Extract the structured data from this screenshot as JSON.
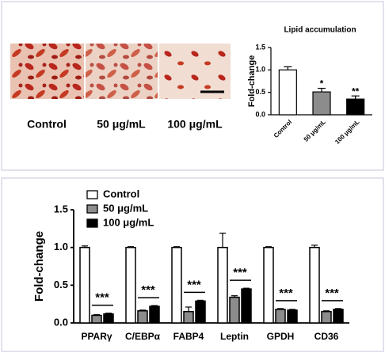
{
  "images": {
    "labels": [
      "Control",
      "50 μg/mL",
      "100 μg/mL"
    ]
  },
  "chart_data": [
    {
      "type": "bar",
      "title": "Lipid accumulation",
      "y_label": "Fold-change",
      "categories": [
        "Control",
        "50 μg/mL",
        "100 μg/mL"
      ],
      "values": [
        1.0,
        0.51,
        0.35
      ],
      "errors": [
        0.07,
        0.08,
        0.07
      ],
      "colors": [
        "#ffffff",
        "#8c8c8c",
        "#000000"
      ],
      "annotations": [
        {
          "category": "50 μg/mL",
          "text": "*"
        },
        {
          "category": "100 μg/mL",
          "text": "**"
        }
      ],
      "ylim": [
        0,
        1.5
      ],
      "yticks": [
        {
          "value": 0,
          "label": "0.0"
        },
        0.5,
        {
          "value": 1,
          "label": "1.0"
        },
        1.5
      ]
    },
    {
      "type": "grouped_bar",
      "y_label": "Fold-change",
      "categories": [
        "PPARγ",
        "C/EBPα",
        "FABP4",
        "Leptin",
        "GPDH",
        "CD36"
      ],
      "series": [
        {
          "name": "Control",
          "color": "#ffffff",
          "values": [
            1.0,
            1.0,
            1.0,
            1.0,
            1.0,
            1.0
          ],
          "errors": [
            0.02,
            0.01,
            0.01,
            0.19,
            0.01,
            0.03
          ]
        },
        {
          "name": "50 μg/mL",
          "color": "#8c8c8c",
          "values": [
            0.1,
            0.16,
            0.15,
            0.34,
            0.18,
            0.15
          ],
          "errors": [
            0.01,
            0.01,
            0.06,
            0.02,
            0.01,
            0.01
          ]
        },
        {
          "name": "100 μg/mL",
          "color": "#000000",
          "values": [
            0.12,
            0.22,
            0.29,
            0.45,
            0.17,
            0.18
          ],
          "errors": [
            0.01,
            0.01,
            0.01,
            0.01,
            0.01,
            0.01
          ]
        }
      ],
      "annotations": [
        "***",
        "***",
        "***",
        "***",
        "***",
        "***"
      ],
      "ylim": [
        0,
        1.5
      ],
      "yticks": [
        {
          "value": 0,
          "label": "0.0"
        },
        0.5,
        {
          "value": 1,
          "label": "1.0"
        },
        1.5
      ],
      "legend": "top-left"
    }
  ]
}
